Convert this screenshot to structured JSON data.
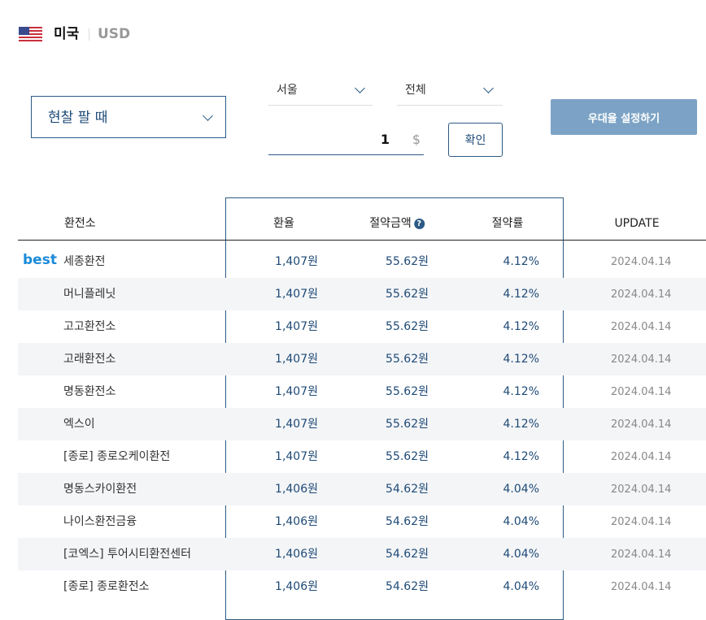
{
  "header": {
    "flag_icon": "us-flag-icon",
    "country": "미국",
    "currency": "USD"
  },
  "controls": {
    "mode": "현찰 팔 때",
    "region": "서울",
    "filter": "전체",
    "amount": "1",
    "amount_unit": "$",
    "confirm_label": "확인",
    "preference_label": "우대율 설정하기"
  },
  "colors": {
    "accent": "#2c5a84",
    "button": "#7ca3c5",
    "best": "#1a8ad8"
  },
  "table": {
    "columns": {
      "name": "환전소",
      "rate": "환율",
      "saving": "절약금액",
      "saving_rate": "절약률",
      "update": "UPDATE"
    },
    "best_label": "best",
    "rows": [
      {
        "name": "세종환전",
        "rate": "1,407원",
        "saving": "55.62원",
        "saving_rate": "4.12%",
        "update": "2024.04.14"
      },
      {
        "name": "머니플레닛",
        "rate": "1,407원",
        "saving": "55.62원",
        "saving_rate": "4.12%",
        "update": "2024.04.14"
      },
      {
        "name": "고고환전소",
        "rate": "1,407원",
        "saving": "55.62원",
        "saving_rate": "4.12%",
        "update": "2024.04.14"
      },
      {
        "name": "고래환전소",
        "rate": "1,407원",
        "saving": "55.62원",
        "saving_rate": "4.12%",
        "update": "2024.04.14"
      },
      {
        "name": "명동환전소",
        "rate": "1,407원",
        "saving": "55.62원",
        "saving_rate": "4.12%",
        "update": "2024.04.14"
      },
      {
        "name": "엑스이",
        "rate": "1,407원",
        "saving": "55.62원",
        "saving_rate": "4.12%",
        "update": "2024.04.14"
      },
      {
        "name": "[종로] 종로오케이환전",
        "rate": "1,407원",
        "saving": "55.62원",
        "saving_rate": "4.12%",
        "update": "2024.04.14"
      },
      {
        "name": "명동스카이환전",
        "rate": "1,406원",
        "saving": "54.62원",
        "saving_rate": "4.04%",
        "update": "2024.04.14"
      },
      {
        "name": "나이스환전금융",
        "rate": "1,406원",
        "saving": "54.62원",
        "saving_rate": "4.04%",
        "update": "2024.04.14"
      },
      {
        "name": "[코엑스] 투어시티환전센터",
        "rate": "1,406원",
        "saving": "54.62원",
        "saving_rate": "4.04%",
        "update": "2024.04.14"
      },
      {
        "name": "[종로] 종로환전소",
        "rate": "1,406원",
        "saving": "54.62원",
        "saving_rate": "4.04%",
        "update": "2024.04.14"
      }
    ]
  }
}
